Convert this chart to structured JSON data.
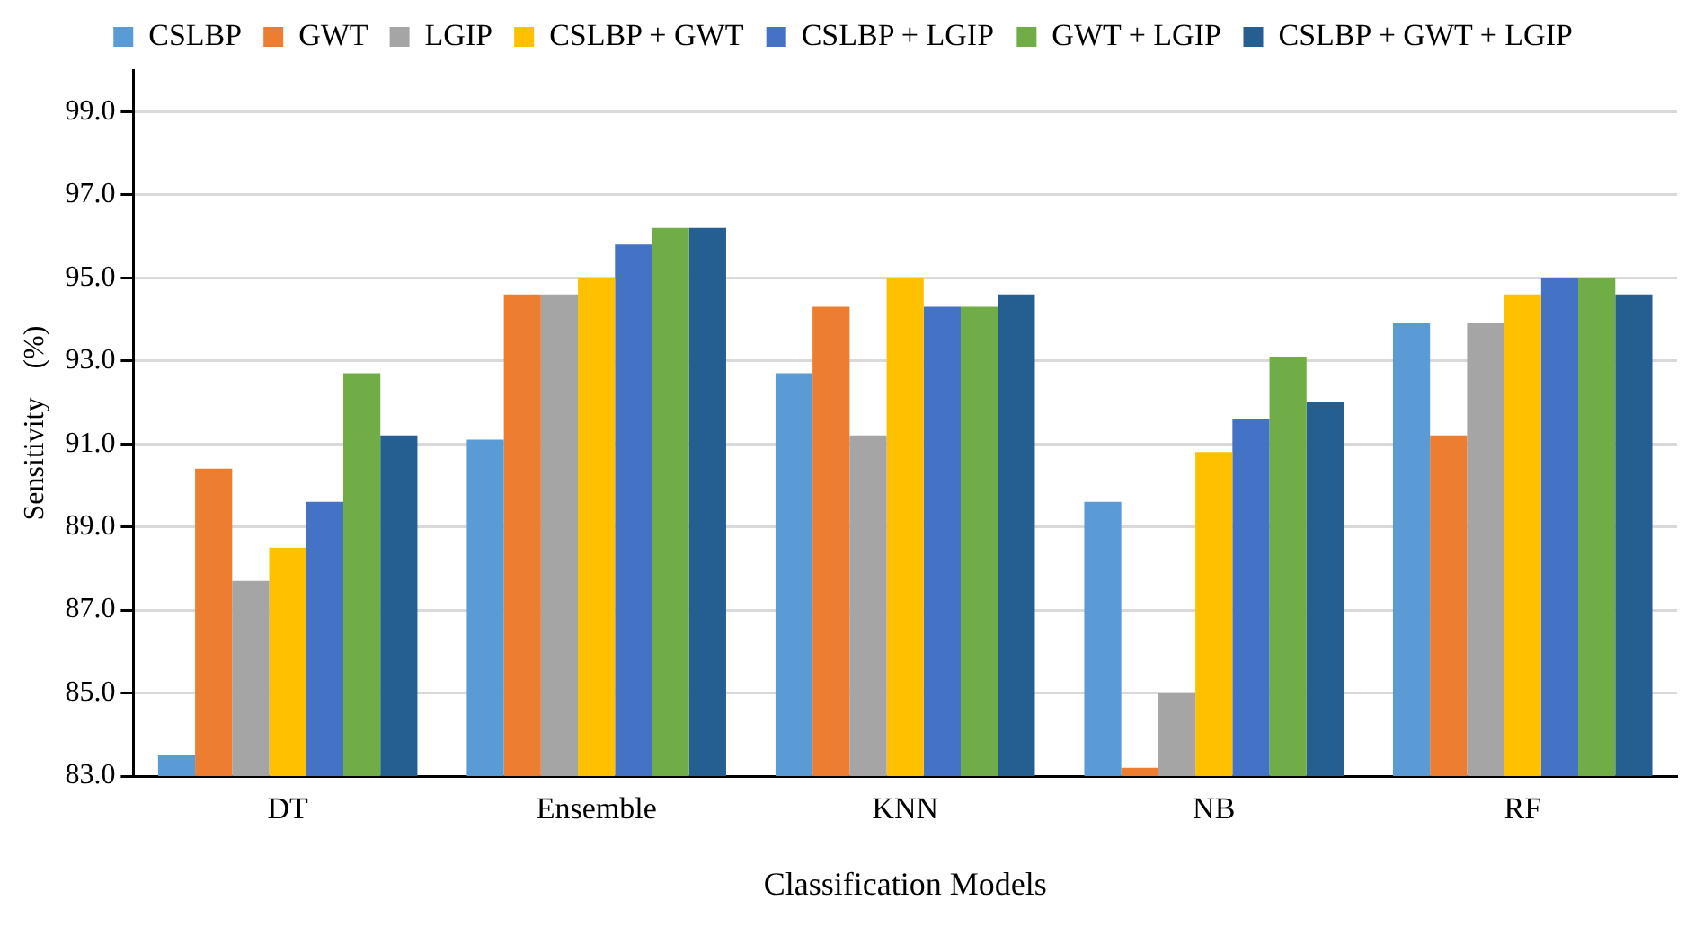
{
  "chart_data": {
    "type": "bar",
    "xlabel": "Classification Models",
    "ylabel": "Sensitivity    (%)",
    "categories": [
      "DT",
      "Ensemble",
      "KNN",
      "NB",
      "RF"
    ],
    "series": [
      {
        "name": "CSLBP",
        "color": "#5b9bd5",
        "values": [
          83.5,
          91.1,
          92.7,
          89.6,
          93.9
        ]
      },
      {
        "name": "GWT",
        "color": "#ed7d31",
        "values": [
          90.4,
          94.6,
          94.3,
          83.2,
          91.2
        ]
      },
      {
        "name": "LGIP",
        "color": "#a5a5a5",
        "values": [
          87.7,
          94.6,
          91.2,
          85.0,
          93.9
        ]
      },
      {
        "name": "CSLBP + GWT",
        "color": "#ffc000",
        "values": [
          88.5,
          95.0,
          95.0,
          90.8,
          94.6
        ]
      },
      {
        "name": "CSLBP + LGIP",
        "color": "#4472c4",
        "values": [
          89.6,
          95.8,
          94.3,
          91.6,
          95.0
        ]
      },
      {
        "name": "GWT + LGIP",
        "color": "#70ad47",
        "values": [
          92.7,
          96.2,
          94.3,
          93.1,
          95.0
        ]
      },
      {
        "name": "CSLBP + GWT + LGIP",
        "color": "#255e91",
        "values": [
          91.2,
          96.2,
          94.6,
          92.0,
          94.6
        ]
      }
    ],
    "ylim": [
      83,
      100
    ],
    "yticks": [
      {
        "value": 83,
        "label": "83.0"
      },
      {
        "value": 85,
        "label": "85.0"
      },
      {
        "value": 87,
        "label": "87.0"
      },
      {
        "value": 89,
        "label": "89.0"
      },
      {
        "value": 91,
        "label": "91.0"
      },
      {
        "value": 93,
        "label": "93.0"
      },
      {
        "value": 95,
        "label": "95.0"
      },
      {
        "value": 97,
        "label": "97.0"
      },
      {
        "value": 99,
        "label": "99.0"
      }
    ],
    "grid": "y",
    "legend": "top"
  }
}
